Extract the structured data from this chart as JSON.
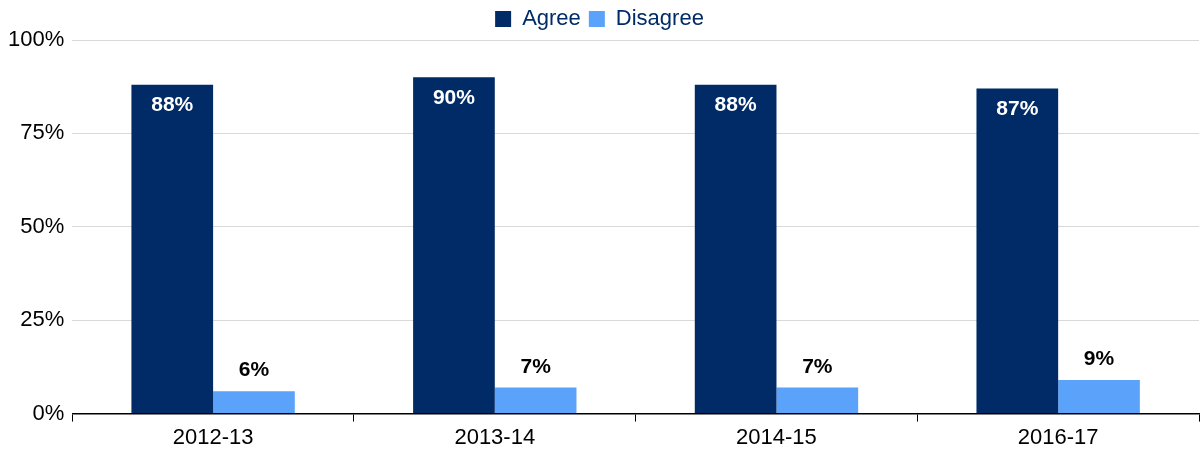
{
  "chart_data": {
    "type": "bar",
    "categories": [
      "2012-13",
      "2013-14",
      "2014-15",
      "2016-17"
    ],
    "series": [
      {
        "name": "Agree",
        "color": "#002b66",
        "values": [
          88,
          90,
          88,
          87
        ],
        "value_labels": [
          "88%",
          "90%",
          "88%",
          "87%"
        ]
      },
      {
        "name": "Disagree",
        "color": "#5aa2fa",
        "values": [
          6,
          7,
          7,
          9
        ],
        "value_labels": [
          "6%",
          "7%",
          "7%",
          "9%"
        ]
      }
    ],
    "ylim": [
      0,
      100
    ],
    "yticks": [
      {
        "value": 0,
        "label": "0%"
      },
      {
        "value": 25,
        "label": "25%"
      },
      {
        "value": 50,
        "label": "50%"
      },
      {
        "value": 75,
        "label": "75%"
      },
      {
        "value": 100,
        "label": "100%"
      }
    ],
    "grid": "y",
    "legend": "top"
  }
}
